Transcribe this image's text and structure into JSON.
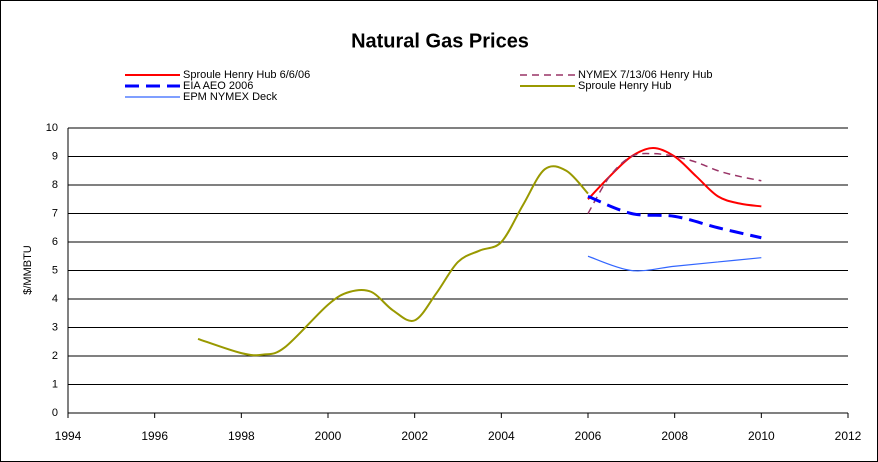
{
  "chart_data": {
    "type": "line",
    "title": "Natural Gas Prices",
    "y_label": "$/MMBTU",
    "xlim": [
      1994,
      2012
    ],
    "xticks": [
      1994,
      1996,
      1998,
      2000,
      2002,
      2004,
      2006,
      2008,
      2010,
      2012
    ],
    "ylim": [
      0,
      10
    ],
    "yticks": [
      0,
      1,
      2,
      3,
      4,
      5,
      6,
      7,
      8,
      9,
      10
    ],
    "grid": true,
    "series": [
      {
        "name": "Sproule Henry Hub 6/6/06",
        "color": "#ff0000",
        "dash": "solid",
        "width": 2,
        "x": [
          2006,
          2006.5,
          2007,
          2007.5,
          2008,
          2008.5,
          2009,
          2009.5,
          2010
        ],
        "values": [
          7.5,
          8.3,
          9.0,
          9.3,
          9.0,
          8.3,
          7.6,
          7.35,
          7.25
        ]
      },
      {
        "name": "NYMEX 7/13/06 Henry Hub",
        "color": "#993366",
        "dash": "dashed",
        "width": 1.5,
        "x": [
          2006,
          2006.5,
          2007,
          2007.5,
          2008,
          2008.5,
          2009,
          2009.5,
          2010
        ],
        "values": [
          7.0,
          8.3,
          9.0,
          9.1,
          9.0,
          8.8,
          8.5,
          8.3,
          8.15
        ]
      },
      {
        "name": "EIA AEO 2006",
        "color": "#0000ff",
        "dash": "dashed",
        "width": 3,
        "x": [
          2006,
          2007,
          2008,
          2009,
          2010
        ],
        "values": [
          7.6,
          7.0,
          6.9,
          6.5,
          6.15
        ]
      },
      {
        "name": "Sproule Henry Hub",
        "color": "#999900",
        "dash": "solid",
        "width": 2,
        "x": [
          1997,
          1998,
          1998.5,
          1999,
          2000,
          2000.5,
          2001,
          2001.5,
          2002,
          2002.5,
          2003,
          2003.5,
          2004,
          2004.5,
          2005,
          2005.5,
          2006
        ],
        "values": [
          2.6,
          2.1,
          2.05,
          2.3,
          3.8,
          4.25,
          4.25,
          3.6,
          3.25,
          4.2,
          5.3,
          5.7,
          6.0,
          7.3,
          8.55,
          8.5,
          7.7
        ]
      },
      {
        "name": "EPM NYMEX Deck",
        "color": "#3366ff",
        "dash": "solid",
        "width": 1.2,
        "x": [
          2006,
          2007,
          2008,
          2009,
          2010
        ],
        "values": [
          5.5,
          5.0,
          5.15,
          5.3,
          5.45
        ]
      }
    ]
  }
}
